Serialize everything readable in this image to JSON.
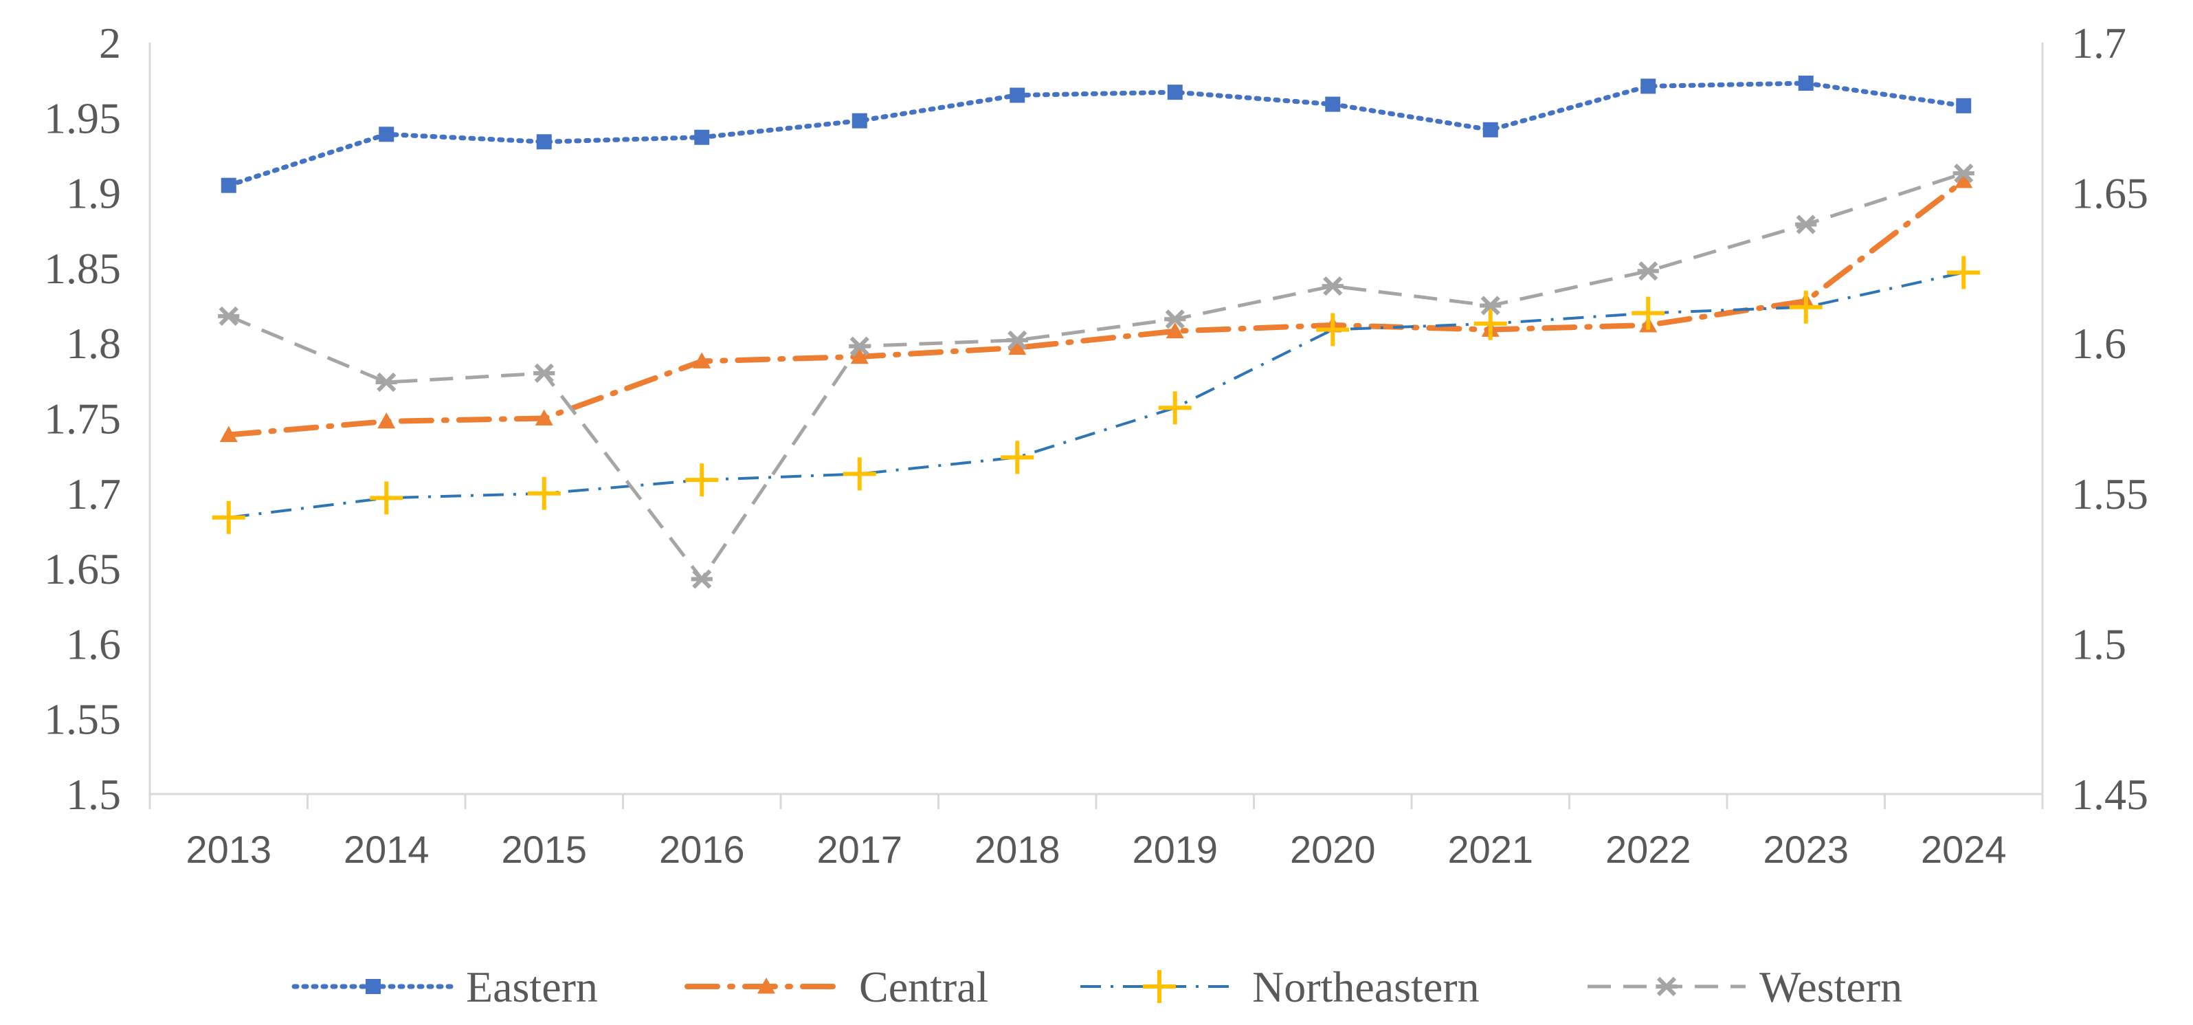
{
  "chart_data": {
    "type": "line",
    "title": "",
    "xlabel": "",
    "ylabel": "",
    "categories": [
      "2013",
      "2014",
      "2015",
      "2016",
      "2017",
      "2018",
      "2019",
      "2020",
      "2021",
      "2022",
      "2023",
      "2024"
    ],
    "ylim": [
      1.5,
      2.0
    ],
    "y2lim": [
      1.45,
      1.7
    ],
    "yticks": [
      "1.5",
      "1.55",
      "1.6",
      "1.65",
      "1.7",
      "1.75",
      "1.8",
      "1.85",
      "1.9",
      "1.95",
      "2"
    ],
    "y2ticks": [
      "1.45",
      "1.5",
      "1.55",
      "1.6",
      "1.65",
      "1.7"
    ],
    "grid": false,
    "legend_position": "bottom",
    "series": [
      {
        "name": "Eastern",
        "axis": "left",
        "color": "#4472C4",
        "marker": "square",
        "dash": "dotted",
        "values": [
          1.905,
          1.939,
          1.934,
          1.937,
          1.948,
          1.965,
          1.967,
          1.959,
          1.942,
          1.971,
          1.973,
          1.958
        ]
      },
      {
        "name": "Central",
        "axis": "left",
        "color": "#ED7D31",
        "marker": "triangle",
        "dash": "longdashdot",
        "values": [
          1.739,
          1.748,
          1.75,
          1.788,
          1.791,
          1.797,
          1.808,
          1.812,
          1.809,
          1.812,
          1.828,
          1.908
        ]
      },
      {
        "name": "Northeastern",
        "axis": "left",
        "color": "#2E75B6",
        "marker": "plus",
        "markerColor": "#FFC000",
        "dash": "dashdot",
        "values": [
          1.684,
          1.697,
          1.7,
          1.709,
          1.713,
          1.724,
          1.757,
          1.809,
          1.813,
          1.82,
          1.824,
          1.847
        ]
      },
      {
        "name": "Western",
        "axis": "left",
        "color": "#A5A5A5",
        "marker": "x",
        "dash": "dash",
        "values": [
          1.818,
          1.774,
          1.78,
          1.643,
          1.798,
          1.802,
          1.816,
          1.838,
          1.825,
          1.848,
          1.879,
          1.913
        ]
      }
    ]
  }
}
